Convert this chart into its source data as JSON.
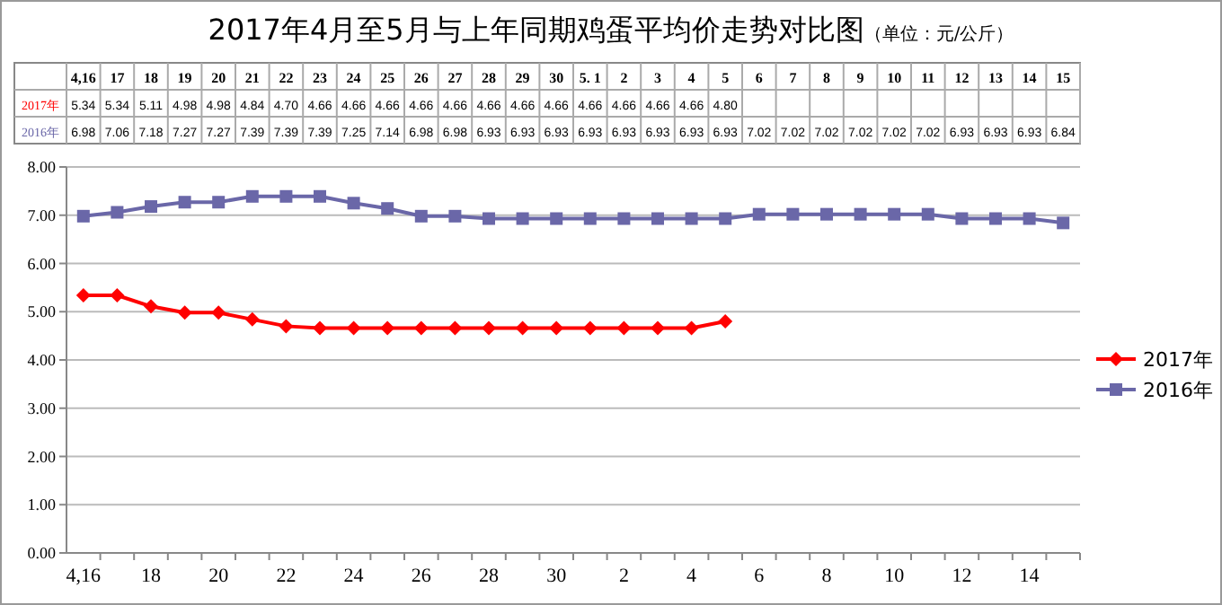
{
  "chart_data": {
    "type": "line",
    "title": "2017年4月至5月与上年同期鸡蛋平均价走势对比图",
    "subtitle": "（单位：元/公斤）",
    "categories": [
      "4,16",
      "17",
      "18",
      "19",
      "20",
      "21",
      "22",
      "23",
      "24",
      "25",
      "26",
      "27",
      "28",
      "29",
      "30",
      "5. 1",
      "2",
      "3",
      "4",
      "5",
      "6",
      "7",
      "8",
      "9",
      "10",
      "11",
      "12",
      "13",
      "14",
      "15"
    ],
    "series": [
      {
        "name": "2017年",
        "color": "#ff0000",
        "marker": "diamond",
        "values": [
          5.34,
          5.34,
          5.11,
          4.98,
          4.98,
          4.84,
          4.7,
          4.66,
          4.66,
          4.66,
          4.66,
          4.66,
          4.66,
          4.66,
          4.66,
          4.66,
          4.66,
          4.66,
          4.66,
          4.8,
          null,
          null,
          null,
          null,
          null,
          null,
          null,
          null,
          null,
          null
        ],
        "value_labels": [
          "5.34",
          "5.34",
          "5.11",
          "4.98",
          "4.98",
          "4.84",
          "4.70",
          "4.66",
          "4.66",
          "4.66",
          "4.66",
          "4.66",
          "4.66",
          "4.66",
          "4.66",
          "4.66",
          "4.66",
          "4.66",
          "4.66",
          "4.80",
          null,
          null,
          null,
          null,
          null,
          null,
          null,
          null,
          null,
          null
        ]
      },
      {
        "name": "2016年",
        "color": "#6a67a8",
        "marker": "square",
        "values": [
          6.98,
          7.06,
          7.18,
          7.27,
          7.27,
          7.39,
          7.39,
          7.39,
          7.25,
          7.14,
          6.98,
          6.98,
          6.93,
          6.93,
          6.93,
          6.93,
          6.93,
          6.93,
          6.93,
          6.93,
          7.02,
          7.02,
          7.02,
          7.02,
          7.02,
          7.02,
          6.93,
          6.93,
          6.93,
          6.84
        ],
        "value_labels": [
          "6.98",
          "7.06",
          "7.18",
          "7.27",
          "7.27",
          "7.39",
          "7.39",
          "7.39",
          "7.25",
          "7.14",
          "6.98",
          "6.98",
          "6.93",
          "6.93",
          "6.93",
          "6.93",
          "6.93",
          "6.93",
          "6.93",
          "6.93",
          "7.02",
          "7.02",
          "7.02",
          "7.02",
          "7.02",
          "7.02",
          "6.93",
          "6.93",
          "6.93",
          "6.84"
        ]
      }
    ],
    "ylim": [
      0,
      8
    ],
    "yticks": [
      {
        "value": 0,
        "label": "0.00"
      },
      {
        "value": 1,
        "label": "1.00"
      },
      {
        "value": 2,
        "label": "2.00"
      },
      {
        "value": 3,
        "label": "3.00"
      },
      {
        "value": 4,
        "label": "4.00"
      },
      {
        "value": 5,
        "label": "5.00"
      },
      {
        "value": 6,
        "label": "6.00"
      },
      {
        "value": 7,
        "label": "7.00"
      },
      {
        "value": 8,
        "label": "8.00"
      }
    ],
    "grid": "y",
    "legend": "right"
  }
}
